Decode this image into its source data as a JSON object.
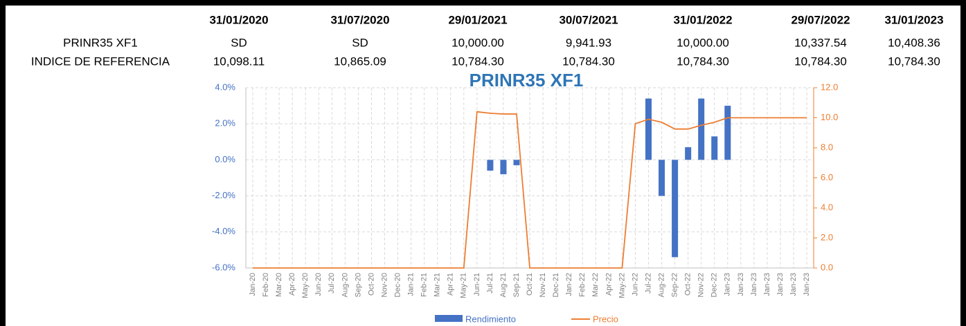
{
  "table": {
    "header": [
      "31/01/2020",
      "31/07/2020",
      "29/01/2021",
      "30/07/2021",
      "31/01/2022",
      "29/07/2022",
      "31/01/2023"
    ],
    "rows": [
      [
        "PRINR35 XF1",
        "SD",
        "SD",
        "10,000.00",
        "9,941.93",
        "10,000.00",
        "10,337.54",
        "10,408.36"
      ],
      [
        "INDICE DE REFERENCIA",
        "10,098.11",
        "10,865.09",
        "10,784.30",
        "10,784.30",
        "10,784.30",
        "10,784.30",
        "10,784.30"
      ]
    ]
  },
  "chart_data": {
    "type": "combo",
    "title": "PRINR35 XF1",
    "categories": [
      "Jan-20",
      "Feb-20",
      "Mar-20",
      "Apr-20",
      "May-20",
      "Jun-20",
      "Jul-20",
      "Aug-20",
      "Sep-20",
      "Oct-20",
      "Nov-20",
      "Dec-20",
      "Jan-21",
      "Feb-21",
      "Mar-21",
      "Apr-21",
      "May-21",
      "Jun-21",
      "Jul-21",
      "Aug-21",
      "Sep-21",
      "Oct-21",
      "Nov-21",
      "Dec-21",
      "Jan-22",
      "Feb-22",
      "Mar-22",
      "Apr-22",
      "May-22",
      "Jun-22",
      "Jul-22",
      "Aug-22",
      "Sep-22",
      "Oct-22",
      "Nov-22",
      "Dec-22",
      "Jan-23",
      "Jan-23",
      "Jan-23",
      "Jan-23",
      "Jan-23",
      "Jan-23",
      "Jan-23"
    ],
    "series": [
      {
        "name": "Rendimiento",
        "type": "bar",
        "color": "#4472c4",
        "axis": "y",
        "values": [
          null,
          null,
          null,
          null,
          null,
          null,
          null,
          null,
          null,
          null,
          null,
          null,
          null,
          null,
          null,
          null,
          null,
          null,
          -0.6,
          -0.8,
          -0.3,
          null,
          null,
          null,
          null,
          null,
          null,
          null,
          null,
          null,
          3.4,
          -2.0,
          -5.4,
          0.7,
          3.4,
          1.3,
          3.0,
          null,
          null,
          null,
          null,
          null,
          null
        ]
      },
      {
        "name": "Precio",
        "type": "line",
        "color": "#ed7d31",
        "axis": "y2",
        "values": [
          0,
          0,
          0,
          0,
          0,
          0,
          0,
          0,
          0,
          0,
          0,
          0,
          0,
          0,
          0,
          0,
          0,
          10.4,
          10.3,
          10.25,
          10.25,
          0,
          0,
          0,
          0,
          0,
          0,
          0,
          0,
          9.6,
          9.9,
          9.7,
          9.25,
          9.25,
          9.5,
          9.7,
          10.0,
          10.0,
          10.0,
          10.0,
          10.0,
          10.0,
          10.0
        ]
      }
    ],
    "ylim": [
      -6,
      4
    ],
    "yticks": [
      {
        "value": -6,
        "label": "-6.0%"
      },
      {
        "value": -4,
        "label": "-4.0%"
      },
      {
        "value": -2,
        "label": "-2.0%"
      },
      {
        "value": 0,
        "label": "0.0%"
      },
      {
        "value": 2,
        "label": "2.0%"
      },
      {
        "value": 4,
        "label": "4.0%"
      }
    ],
    "y2lim": [
      0,
      12
    ],
    "y2ticks": [
      {
        "value": 0,
        "label": "0.0"
      },
      {
        "value": 2,
        "label": "2.0"
      },
      {
        "value": 4,
        "label": "4.0"
      },
      {
        "value": 6,
        "label": "6.0"
      },
      {
        "value": 8,
        "label": "8.0"
      },
      {
        "value": 10,
        "label": "10.0"
      },
      {
        "value": 12,
        "label": "12.0"
      }
    ],
    "grid": true,
    "legend": "bottom"
  }
}
